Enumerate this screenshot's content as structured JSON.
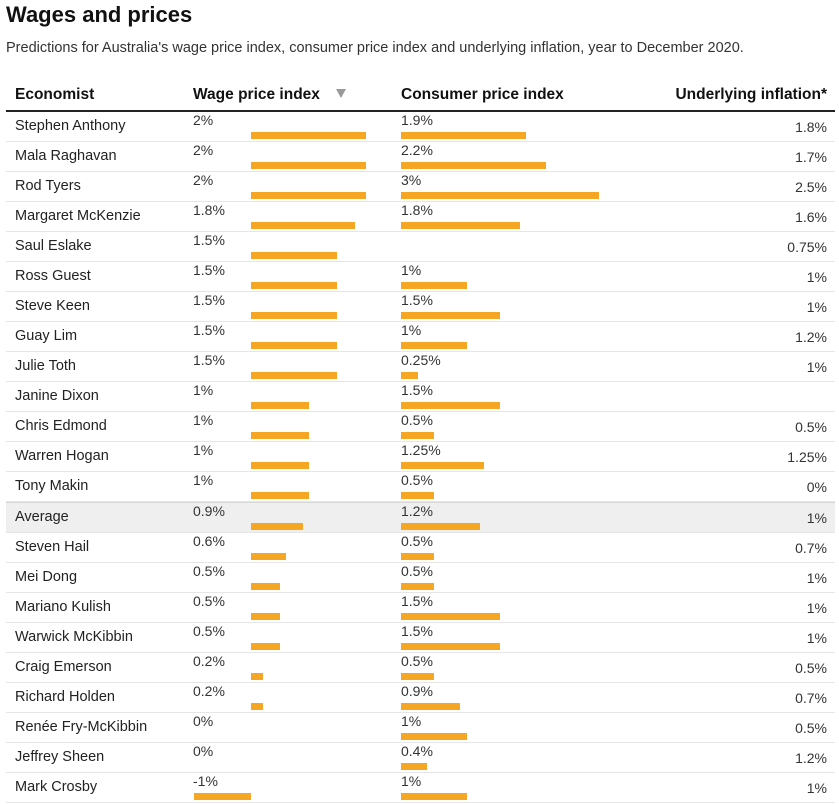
{
  "title": "Wages and prices",
  "subtitle": "Predictions for Australia's wage price index, consumer price index and underlying inflation, year to December 2020.",
  "columns": {
    "economist": "Economist",
    "wage": "Wage price index",
    "cpi": "Consumer price index",
    "underlying": "Underlying inflation*"
  },
  "colors": {
    "bar": "#f5a623",
    "average_row": "#efefef"
  },
  "chart_data": {
    "type": "table",
    "sorted_by": "Wage price index",
    "sort_order": "descending",
    "rows": [
      {
        "economist": "Stephen Anthony",
        "wage": 2,
        "wage_label": "2%",
        "cpi": 1.9,
        "cpi_label": "1.9%",
        "underlying_label": "1.8%"
      },
      {
        "economist": "Mala Raghavan",
        "wage": 2,
        "wage_label": "2%",
        "cpi": 2.2,
        "cpi_label": "2.2%",
        "underlying_label": "1.7%"
      },
      {
        "economist": "Rod Tyers",
        "wage": 2,
        "wage_label": "2%",
        "cpi": 3,
        "cpi_label": "3%",
        "underlying_label": "2.5%"
      },
      {
        "economist": "Margaret McKenzie",
        "wage": 1.8,
        "wage_label": "1.8%",
        "cpi": 1.8,
        "cpi_label": "1.8%",
        "underlying_label": "1.6%"
      },
      {
        "economist": "Saul Eslake",
        "wage": 1.5,
        "wage_label": "1.5%",
        "cpi": null,
        "cpi_label": "",
        "underlying_label": "0.75%"
      },
      {
        "economist": "Ross Guest",
        "wage": 1.5,
        "wage_label": "1.5%",
        "cpi": 1,
        "cpi_label": "1%",
        "underlying_label": "1%"
      },
      {
        "economist": "Steve Keen",
        "wage": 1.5,
        "wage_label": "1.5%",
        "cpi": 1.5,
        "cpi_label": "1.5%",
        "underlying_label": "1%"
      },
      {
        "economist": "Guay Lim",
        "wage": 1.5,
        "wage_label": "1.5%",
        "cpi": 1,
        "cpi_label": "1%",
        "underlying_label": "1.2%"
      },
      {
        "economist": "Julie Toth",
        "wage": 1.5,
        "wage_label": "1.5%",
        "cpi": 0.25,
        "cpi_label": "0.25%",
        "underlying_label": "1%"
      },
      {
        "economist": "Janine Dixon",
        "wage": 1,
        "wage_label": "1%",
        "cpi": 1.5,
        "cpi_label": "1.5%",
        "underlying_label": ""
      },
      {
        "economist": "Chris Edmond",
        "wage": 1,
        "wage_label": "1%",
        "cpi": 0.5,
        "cpi_label": "0.5%",
        "underlying_label": "0.5%"
      },
      {
        "economist": "Warren Hogan",
        "wage": 1,
        "wage_label": "1%",
        "cpi": 1.25,
        "cpi_label": "1.25%",
        "underlying_label": "1.25%"
      },
      {
        "economist": "Tony Makin",
        "wage": 1,
        "wage_label": "1%",
        "cpi": 0.5,
        "cpi_label": "0.5%",
        "underlying_label": "0%"
      },
      {
        "economist": "Average",
        "wage": 0.9,
        "wage_label": "0.9%",
        "cpi": 1.2,
        "cpi_label": "1.2%",
        "underlying_label": "1%",
        "average": true
      },
      {
        "economist": "Steven Hail",
        "wage": 0.6,
        "wage_label": "0.6%",
        "cpi": 0.5,
        "cpi_label": "0.5%",
        "underlying_label": "0.7%"
      },
      {
        "economist": "Mei Dong",
        "wage": 0.5,
        "wage_label": "0.5%",
        "cpi": 0.5,
        "cpi_label": "0.5%",
        "underlying_label": "1%"
      },
      {
        "economist": "Mariano Kulish",
        "wage": 0.5,
        "wage_label": "0.5%",
        "cpi": 1.5,
        "cpi_label": "1.5%",
        "underlying_label": "1%"
      },
      {
        "economist": "Warwick McKibbin",
        "wage": 0.5,
        "wage_label": "0.5%",
        "cpi": 1.5,
        "cpi_label": "1.5%",
        "underlying_label": "1%"
      },
      {
        "economist": "Craig Emerson",
        "wage": 0.2,
        "wage_label": "0.2%",
        "cpi": 0.5,
        "cpi_label": "0.5%",
        "underlying_label": "0.5%"
      },
      {
        "economist": "Richard Holden",
        "wage": 0.2,
        "wage_label": "0.2%",
        "cpi": 0.9,
        "cpi_label": "0.9%",
        "underlying_label": "0.7%"
      },
      {
        "economist": "Renée Fry-McKibbin",
        "wage": 0,
        "wage_label": "0%",
        "cpi": 1,
        "cpi_label": "1%",
        "underlying_label": "0.5%"
      },
      {
        "economist": "Jeffrey Sheen",
        "wage": 0,
        "wage_label": "0%",
        "cpi": 0.4,
        "cpi_label": "0.4%",
        "underlying_label": "1.2%"
      },
      {
        "economist": "Mark Crosby",
        "wage": -1,
        "wage_label": "-1%",
        "cpi": 1,
        "cpi_label": "1%",
        "underlying_label": "1%"
      }
    ]
  }
}
